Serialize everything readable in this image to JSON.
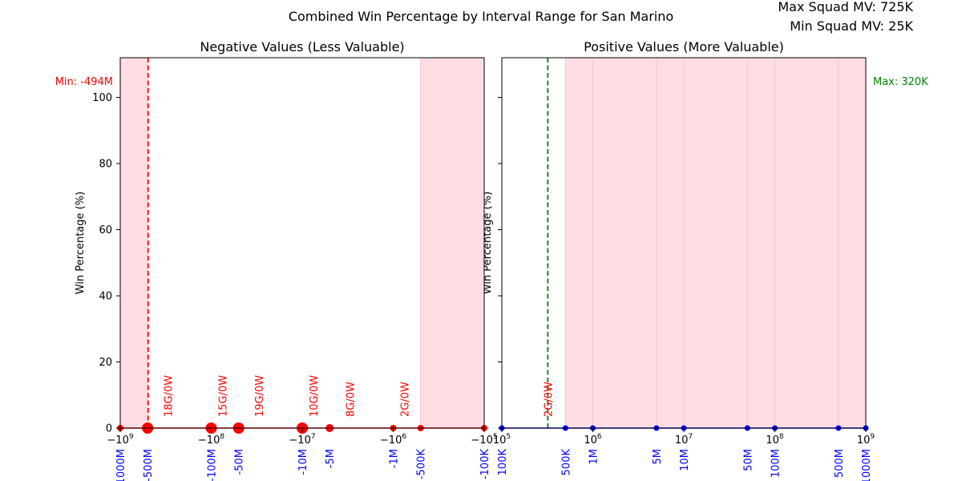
{
  "figure": {
    "title": "Combined Win Percentage by Interval Range for San Marino",
    "info_lines": [
      "Max Squad MV: 725K",
      "Min Squad MV: 25K"
    ]
  },
  "colors": {
    "negative": "#ff0000",
    "positive": "#0000ff",
    "tick_label": "#0000ff",
    "band": "#ffdde3",
    "band_edge": "#f7c4cf",
    "max_line": "#008000"
  },
  "chart_data": [
    {
      "type": "line",
      "title": "Negative Values (Less Valuable)",
      "xlabel": "",
      "ylabel": "Win Percentage (%)",
      "xscale": "symlog",
      "xlim": [
        -1000000000,
        -100000
      ],
      "ylim": [
        0,
        112
      ],
      "yticks": [
        0,
        20,
        40,
        60,
        80,
        100
      ],
      "xticks_math": [
        {
          "x": -1000000000,
          "base": "−10",
          "exp": "9"
        },
        {
          "x": -100000000,
          "base": "−10",
          "exp": "8"
        },
        {
          "x": -10000000,
          "base": "−10",
          "exp": "7"
        },
        {
          "x": -1000000,
          "base": "−10",
          "exp": "6"
        },
        {
          "x": -100000,
          "base": "−10",
          "exp": "5"
        }
      ],
      "interval_labels": [
        {
          "x": -1000000000,
          "label": "-1000M"
        },
        {
          "x": -500000000,
          "label": "-500M"
        },
        {
          "x": -100000000,
          "label": "-100M"
        },
        {
          "x": -50000000,
          "label": "-50M"
        },
        {
          "x": -10000000,
          "label": "-10M"
        },
        {
          "x": -5000000,
          "label": "-5M"
        },
        {
          "x": -1000000,
          "label": "-1M"
        },
        {
          "x": -500000,
          "label": "-500K"
        },
        {
          "x": -100000,
          "label": "-100K"
        }
      ],
      "series": [
        {
          "x": [
            -1000000000,
            -500000000,
            -100000000,
            -50000000,
            -10000000,
            -5000000,
            -1000000,
            -500000,
            -100000
          ],
          "y": [
            0,
            0,
            0,
            0,
            0,
            0,
            0,
            0,
            0
          ],
          "marker_sizes": [
            4,
            7,
            7,
            7,
            7,
            5,
            4,
            4,
            4
          ]
        }
      ],
      "bands": [
        {
          "from": -1000000000,
          "to": -500000000
        },
        {
          "from": -500000,
          "to": -100000
        }
      ],
      "ref_line": {
        "x": -494000000,
        "label": "Min: -494M"
      },
      "annotations": [
        {
          "x": -300000000,
          "text": "18G/0W"
        },
        {
          "x": -75000000,
          "text": "15G/0W"
        },
        {
          "x": -30000000,
          "text": "19G/0W"
        },
        {
          "x": -7500000,
          "text": "10G/0W"
        },
        {
          "x": -3000000,
          "text": "8G/0W"
        },
        {
          "x": -750000,
          "text": "2G/0W"
        }
      ]
    },
    {
      "type": "line",
      "title": "Positive Values (More Valuable)",
      "xlabel": "",
      "ylabel": "Win Percentage (%)",
      "xscale": "log",
      "xlim": [
        100000,
        1000000000
      ],
      "ylim": [
        0,
        112
      ],
      "yticks": [
        0,
        20,
        40,
        60,
        80,
        100
      ],
      "xticks_math": [
        {
          "x": 100000,
          "base": "10",
          "exp": "5"
        },
        {
          "x": 1000000,
          "base": "10",
          "exp": "6"
        },
        {
          "x": 10000000,
          "base": "10",
          "exp": "7"
        },
        {
          "x": 100000000,
          "base": "10",
          "exp": "8"
        },
        {
          "x": 1000000000,
          "base": "10",
          "exp": "9"
        }
      ],
      "interval_labels": [
        {
          "x": 100000,
          "label": "100K"
        },
        {
          "x": 500000,
          "label": "500K"
        },
        {
          "x": 1000000,
          "label": "1M"
        },
        {
          "x": 5000000,
          "label": "5M"
        },
        {
          "x": 10000000,
          "label": "10M"
        },
        {
          "x": 50000000,
          "label": "50M"
        },
        {
          "x": 100000000,
          "label": "100M"
        },
        {
          "x": 500000000,
          "label": "500M"
        },
        {
          "x": 1000000000,
          "label": "1000M"
        }
      ],
      "series": [
        {
          "x": [
            100000,
            500000,
            1000000,
            5000000,
            10000000,
            50000000,
            100000000,
            500000000,
            1000000000
          ],
          "y": [
            0,
            0,
            0,
            0,
            0,
            0,
            0,
            0,
            0
          ],
          "marker_sizes": [
            3.5,
            3.5,
            3.5,
            3.5,
            3.5,
            3.5,
            3.5,
            3.5,
            3.5
          ]
        }
      ],
      "bands": [
        {
          "from": 500000,
          "to": 1000000
        },
        {
          "from": 1000000,
          "to": 5000000
        },
        {
          "from": 5000000,
          "to": 10000000
        },
        {
          "from": 10000000,
          "to": 50000000
        },
        {
          "from": 50000000,
          "to": 100000000
        },
        {
          "from": 100000000,
          "to": 500000000
        },
        {
          "from": 500000000,
          "to": 1000000000
        }
      ],
      "ref_line": {
        "x": 320000,
        "label": "Max: 320K"
      },
      "annotations": [
        {
          "x": 320000,
          "text": "2G/0W"
        }
      ]
    }
  ]
}
